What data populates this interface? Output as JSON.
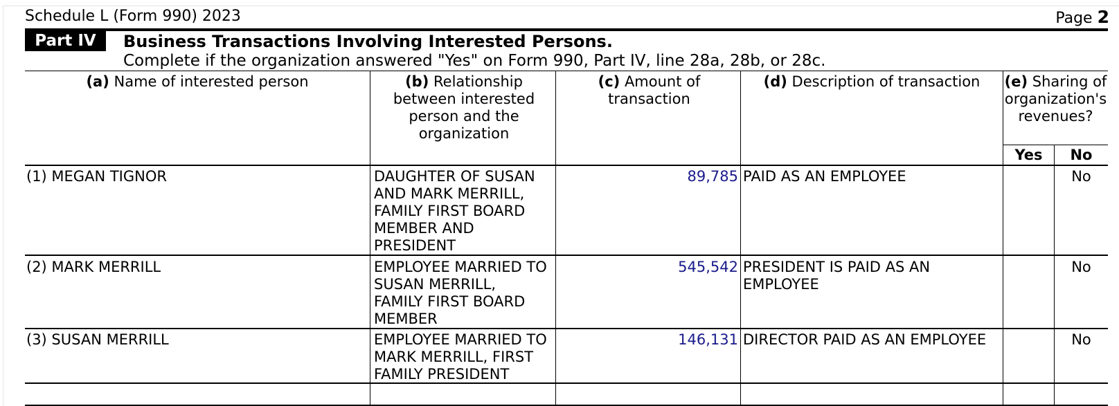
{
  "form_header": {
    "form_name": "Schedule L (Form 990) 2023",
    "page_label": "Page",
    "page_number": "2"
  },
  "part": {
    "badge": "Part IV",
    "title": "Business Transactions Involving Interested Persons.",
    "subtitle": "Complete if the organization answered \"Yes\" on Form 990, Part IV, line 28a, 28b, or 28c."
  },
  "columns": {
    "a": {
      "letter": "(a)",
      "label": "Name of interested person"
    },
    "b": {
      "letter": "(b)",
      "label": "Relationship between interested person and the organization"
    },
    "c": {
      "letter": "(c)",
      "label": "Amount of transaction"
    },
    "d": {
      "letter": "(d)",
      "label": "Description of transaction"
    },
    "e": {
      "letter": "(e)",
      "label": "Sharing of organization's revenues?",
      "yes": "Yes",
      "no": "No"
    }
  },
  "rows": [
    {
      "name": "(1) MEGAN TIGNOR",
      "relationship": "DAUGHTER OF SUSAN\nAND MARK MERRILL,\nFAMILY FIRST BOARD\nMEMBER AND\nPRESIDENT",
      "amount": "89,785",
      "description": "PAID AS AN EMPLOYEE",
      "yes": "",
      "no": "No"
    },
    {
      "name": "(2) MARK MERRILL",
      "relationship": "EMPLOYEE MARRIED TO\nSUSAN MERRILL,\nFAMILY FIRST BOARD\nMEMBER",
      "amount": "545,542",
      "description": "PRESIDENT IS PAID AS AN\nEMPLOYEE",
      "yes": "",
      "no": "No"
    },
    {
      "name": "(3) SUSAN MERRILL",
      "relationship": "EMPLOYEE MARRIED TO\nMARK MERRILL, FIRST\nFAMILY PRESIDENT",
      "amount": "146,131",
      "description": "DIRECTOR PAID AS AN EMPLOYEE",
      "yes": "",
      "no": "No"
    }
  ]
}
